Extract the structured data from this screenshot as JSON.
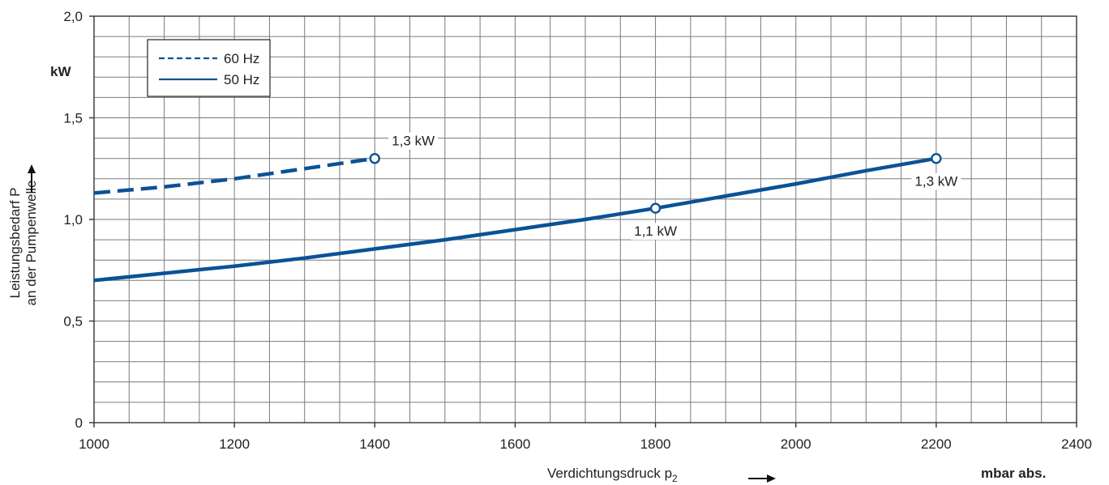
{
  "chart_data": {
    "type": "line",
    "x_ticks": [
      1000,
      1200,
      1400,
      1600,
      1800,
      2000,
      2200,
      2400
    ],
    "y_ticks": [
      {
        "value": 0,
        "label": "0"
      },
      {
        "value": 0.5,
        "label": "0,5"
      },
      {
        "value": 1.0,
        "label": "1,0"
      },
      {
        "value": 1.5,
        "label": "1,5"
      },
      {
        "value": 2.0,
        "label": "2,0"
      }
    ],
    "xlim": [
      1000,
      2400
    ],
    "ylim": [
      0,
      2.0
    ],
    "x_minor_step": 50,
    "y_minor_step": 0.1,
    "grid": true,
    "xlabel": "Verdichtungsdruck p",
    "xlabel_sub": "2",
    "x_unit": "mbar abs.",
    "y_unit": "kW",
    "ylabel_line1": "Leistungsbedarf P",
    "ylabel_line2": "an der Pumpenwelle",
    "arrow_glyph": "→",
    "legend_position": "top-left",
    "series": [
      {
        "name": "60 Hz",
        "style": "dashed",
        "color": "#0a5296",
        "x": [
          1000,
          1100,
          1200,
          1300,
          1400
        ],
        "y": [
          1.13,
          1.16,
          1.2,
          1.25,
          1.3
        ]
      },
      {
        "name": "50 Hz",
        "style": "solid",
        "color": "#0a5296",
        "x": [
          1000,
          1100,
          1200,
          1300,
          1400,
          1500,
          1600,
          1700,
          1800,
          1900,
          2000,
          2100,
          2200
        ],
        "y": [
          0.7,
          0.735,
          0.77,
          0.81,
          0.855,
          0.9,
          0.95,
          1.0,
          1.055,
          1.115,
          1.175,
          1.24,
          1.3
        ]
      }
    ],
    "annotations": [
      {
        "x": 1400,
        "y": 1.3,
        "label": "1,3 kW",
        "position": "above-right"
      },
      {
        "x": 1800,
        "y": 1.055,
        "label": "1,1 kW",
        "position": "below"
      },
      {
        "x": 2200,
        "y": 1.3,
        "label": "1,3 kW",
        "position": "below"
      }
    ]
  }
}
